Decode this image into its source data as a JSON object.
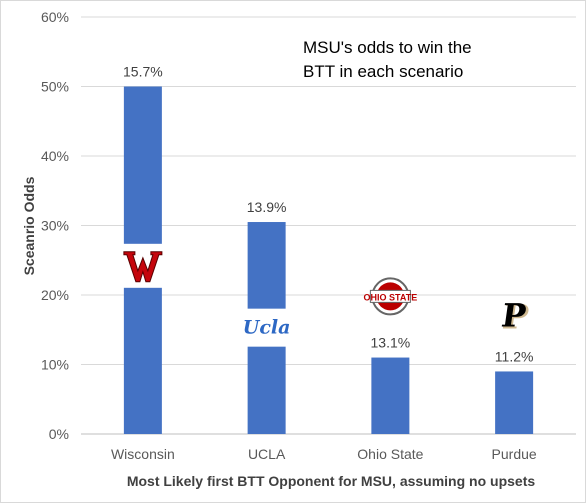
{
  "chart_data": {
    "type": "bar",
    "title": "",
    "annotation": [
      "MSU's odds to win the",
      "BTT in each scenario"
    ],
    "xlabel": "Most Likely first BTT Opponent for MSU, assuming no upsets",
    "ylabel": "Sceanrio Odds",
    "ylim": [
      0,
      60
    ],
    "y_unit": "%",
    "yticks": [
      "0%",
      "10%",
      "20%",
      "30%",
      "40%",
      "50%",
      "60%"
    ],
    "grid": true,
    "legend": "none",
    "categories": [
      "Wisconsin",
      "UCLA",
      "Ohio State",
      "Purdue"
    ],
    "values": [
      50,
      30.5,
      11,
      9
    ],
    "data_labels": [
      "15.7%",
      "13.9%",
      "13.1%",
      "11.2%"
    ],
    "logos": [
      "wisconsin-logo",
      "ucla-logo",
      "ohio-state-logo",
      "purdue-logo"
    ],
    "bar_color": "#4472c4",
    "colors": {
      "wisconsin": "#c5050c",
      "ohio_state": "#bb0000",
      "ucla": "#2d68c4",
      "purdue_gold": "#cfb991",
      "purdue_black": "#000000"
    },
    "logo_text": {
      "ucla": "Ucla",
      "ohio_state": "OHIO STATE",
      "purdue": "P"
    }
  }
}
